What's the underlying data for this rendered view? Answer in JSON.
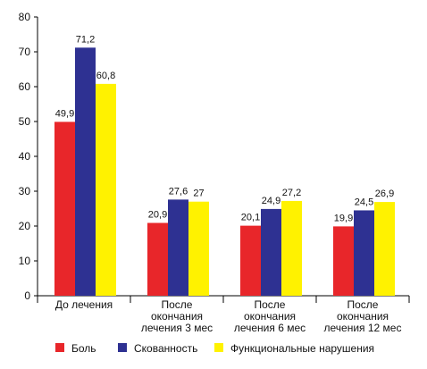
{
  "chart_data": {
    "type": "bar",
    "categories": [
      [
        "До лечения"
      ],
      [
        "После",
        "окончания",
        "лечения 3 мес"
      ],
      [
        "После",
        "окончания",
        "лечения 6 мес"
      ],
      [
        "После",
        "окончания",
        "лечения 12 мес"
      ]
    ],
    "series": [
      {
        "name": "Боль",
        "color": "#e8262a",
        "values": [
          49.9,
          20.9,
          20.1,
          19.9
        ],
        "labels": [
          "49,9",
          "20,9",
          "20,1",
          "19,9"
        ]
      },
      {
        "name": "Скованность",
        "color": "#2e3192",
        "values": [
          71.2,
          27.6,
          24.9,
          24.5
        ],
        "labels": [
          "71,2",
          "27,6",
          "24,9",
          "24,5"
        ]
      },
      {
        "name": "Функциональные нарушения",
        "color": "#fff200",
        "values": [
          60.8,
          27,
          27.2,
          26.9
        ],
        "labels": [
          "60,8",
          "27",
          "27,2",
          "26,9"
        ]
      }
    ],
    "yticks": [
      "0",
      "10",
      "20",
      "30",
      "40",
      "50",
      "60",
      "70",
      "80"
    ],
    "ylim": [
      0,
      80
    ],
    "grid": false,
    "legend_position": "bottom",
    "title": "",
    "xlabel": "",
    "ylabel": ""
  }
}
